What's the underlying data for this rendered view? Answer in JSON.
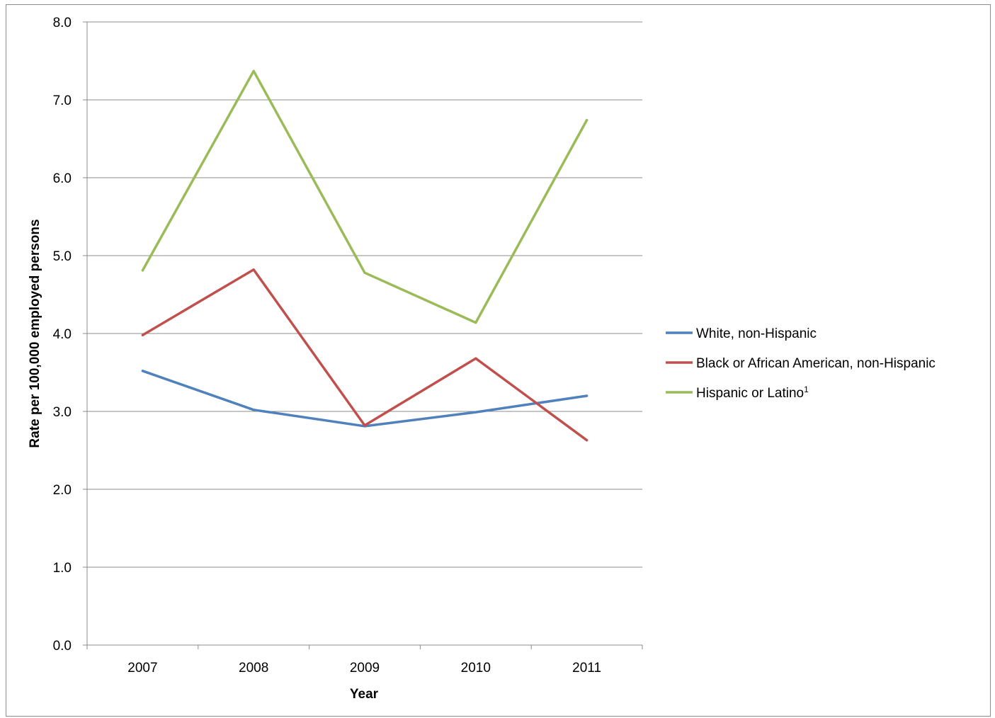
{
  "chart_data": {
    "type": "line",
    "title": "",
    "xlabel": "Year",
    "ylabel": "Rate per 100,000 employed persons",
    "categories": [
      "2007",
      "2008",
      "2009",
      "2010",
      "2011"
    ],
    "ylim": [
      0,
      8
    ],
    "y_ticks": [
      "0.0",
      "1.0",
      "2.0",
      "3.0",
      "4.0",
      "5.0",
      "6.0",
      "7.0",
      "8.0"
    ],
    "grid": true,
    "legend_position": "right",
    "series": [
      {
        "name": "White, non-Hispanic",
        "color": "#4f81bd",
        "values": [
          3.52,
          3.02,
          2.81,
          2.99,
          3.2
        ]
      },
      {
        "name": "Black or African American, non-Hispanic",
        "color": "#c0504d",
        "values": [
          3.98,
          4.82,
          2.82,
          3.68,
          2.63
        ]
      },
      {
        "name": "Hispanic or Latino",
        "name_superscript": "1",
        "color": "#9bbb59",
        "values": [
          4.81,
          7.37,
          4.78,
          4.14,
          6.74
        ]
      }
    ]
  }
}
